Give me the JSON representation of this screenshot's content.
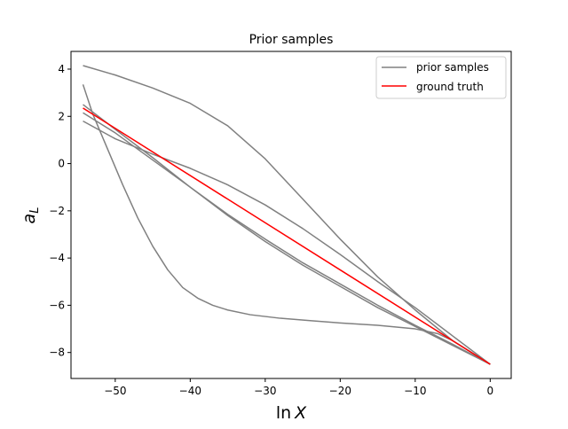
{
  "chart_data": {
    "type": "line",
    "title": "Prior samples",
    "xlabel_parts": {
      "func": "ln",
      "var": "X"
    },
    "ylabel_parts": {
      "base": "a",
      "sub": "L"
    },
    "xlim": [
      -55.9,
      2.8
    ],
    "ylim": [
      -9.1,
      4.75
    ],
    "xticks": [
      -50,
      -40,
      -30,
      -20,
      -10,
      0
    ],
    "yticks": [
      -8,
      -6,
      -4,
      -2,
      0,
      2,
      4
    ],
    "legend": {
      "placement": "top-right",
      "entries": [
        "prior samples",
        "ground truth"
      ]
    },
    "colors": {
      "prior": "#808080",
      "truth": "#ff0000"
    },
    "series": [
      {
        "role": "prior",
        "points": [
          [
            -54.3,
            4.15
          ],
          [
            -50,
            3.75
          ],
          [
            -45,
            3.2
          ],
          [
            -40,
            2.55
          ],
          [
            -35,
            1.6
          ],
          [
            -30,
            0.2
          ],
          [
            -25,
            -1.5
          ],
          [
            -20,
            -3.2
          ],
          [
            -15,
            -4.8
          ],
          [
            -10,
            -6.2
          ],
          [
            -5,
            -7.5
          ],
          [
            0,
            -8.5
          ]
        ]
      },
      {
        "role": "prior",
        "points": [
          [
            -54.3,
            3.35
          ],
          [
            -53,
            2.1
          ],
          [
            -51,
            0.6
          ],
          [
            -49,
            -0.9
          ],
          [
            -47,
            -2.3
          ],
          [
            -45,
            -3.5
          ],
          [
            -43,
            -4.5
          ],
          [
            -41,
            -5.25
          ],
          [
            -39,
            -5.7
          ],
          [
            -37,
            -6.0
          ],
          [
            -35,
            -6.2
          ],
          [
            -32,
            -6.4
          ],
          [
            -28,
            -6.55
          ],
          [
            -24,
            -6.65
          ],
          [
            -20,
            -6.75
          ],
          [
            -15,
            -6.85
          ],
          [
            -10,
            -7.0
          ],
          [
            -7,
            -7.2
          ],
          [
            -5,
            -7.5
          ],
          [
            -3,
            -7.9
          ],
          [
            0,
            -8.5
          ]
        ]
      },
      {
        "role": "prior",
        "points": [
          [
            -54.3,
            2.5
          ],
          [
            -50,
            1.45
          ],
          [
            -45,
            0.25
          ],
          [
            -40,
            -1.0
          ],
          [
            -35,
            -2.2
          ],
          [
            -30,
            -3.3
          ],
          [
            -25,
            -4.3
          ],
          [
            -20,
            -5.2
          ],
          [
            -15,
            -6.1
          ],
          [
            -10,
            -6.9
          ],
          [
            -5,
            -7.7
          ],
          [
            0,
            -8.5
          ]
        ]
      },
      {
        "role": "prior",
        "points": [
          [
            -54.3,
            2.15
          ],
          [
            -50,
            1.3
          ],
          [
            -45,
            0.15
          ],
          [
            -40,
            -1.0
          ],
          [
            -35,
            -2.15
          ],
          [
            -30,
            -3.2
          ],
          [
            -25,
            -4.2
          ],
          [
            -20,
            -5.1
          ],
          [
            -15,
            -6.0
          ],
          [
            -10,
            -6.85
          ],
          [
            -5,
            -7.65
          ],
          [
            0,
            -8.5
          ]
        ]
      },
      {
        "role": "prior",
        "points": [
          [
            -54.3,
            1.8
          ],
          [
            -50,
            1.05
          ],
          [
            -45,
            0.4
          ],
          [
            -40,
            -0.2
          ],
          [
            -35,
            -0.9
          ],
          [
            -30,
            -1.75
          ],
          [
            -25,
            -2.75
          ],
          [
            -20,
            -3.85
          ],
          [
            -15,
            -5.0
          ],
          [
            -10,
            -6.1
          ],
          [
            -5,
            -7.3
          ],
          [
            0,
            -8.5
          ]
        ]
      },
      {
        "role": "truth",
        "points": [
          [
            -54.3,
            2.35
          ],
          [
            0,
            -8.5
          ]
        ]
      }
    ]
  }
}
